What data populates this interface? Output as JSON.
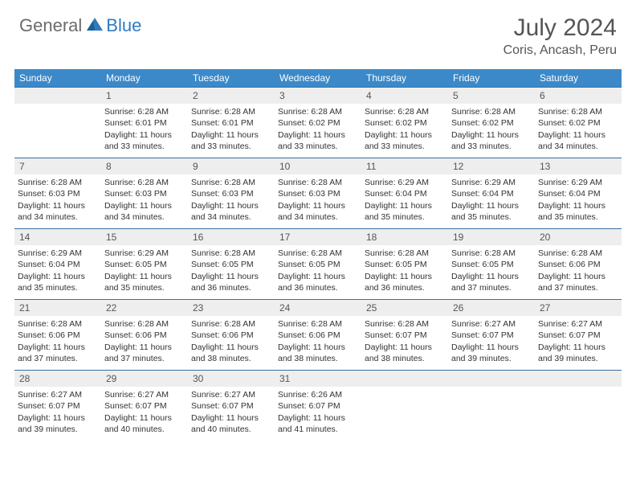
{
  "brand": {
    "general": "General",
    "blue": "Blue"
  },
  "title": "July 2024",
  "location": "Coris, Ancash, Peru",
  "colors": {
    "header_bg": "#3b89c9",
    "header_text": "#ffffff",
    "stripe_bg": "#eeeeee",
    "border": "#3b6fa0",
    "body_text": "#333333",
    "brand_gray": "#6b6b6b",
    "brand_blue": "#2f7bbf"
  },
  "dow": [
    "Sunday",
    "Monday",
    "Tuesday",
    "Wednesday",
    "Thursday",
    "Friday",
    "Saturday"
  ],
  "weeks": [
    [
      {
        "n": "",
        "sr": "",
        "ss": "",
        "dl": ""
      },
      {
        "n": "1",
        "sr": "Sunrise: 6:28 AM",
        "ss": "Sunset: 6:01 PM",
        "dl": "Daylight: 11 hours and 33 minutes."
      },
      {
        "n": "2",
        "sr": "Sunrise: 6:28 AM",
        "ss": "Sunset: 6:01 PM",
        "dl": "Daylight: 11 hours and 33 minutes."
      },
      {
        "n": "3",
        "sr": "Sunrise: 6:28 AM",
        "ss": "Sunset: 6:02 PM",
        "dl": "Daylight: 11 hours and 33 minutes."
      },
      {
        "n": "4",
        "sr": "Sunrise: 6:28 AM",
        "ss": "Sunset: 6:02 PM",
        "dl": "Daylight: 11 hours and 33 minutes."
      },
      {
        "n": "5",
        "sr": "Sunrise: 6:28 AM",
        "ss": "Sunset: 6:02 PM",
        "dl": "Daylight: 11 hours and 33 minutes."
      },
      {
        "n": "6",
        "sr": "Sunrise: 6:28 AM",
        "ss": "Sunset: 6:02 PM",
        "dl": "Daylight: 11 hours and 34 minutes."
      }
    ],
    [
      {
        "n": "7",
        "sr": "Sunrise: 6:28 AM",
        "ss": "Sunset: 6:03 PM",
        "dl": "Daylight: 11 hours and 34 minutes."
      },
      {
        "n": "8",
        "sr": "Sunrise: 6:28 AM",
        "ss": "Sunset: 6:03 PM",
        "dl": "Daylight: 11 hours and 34 minutes."
      },
      {
        "n": "9",
        "sr": "Sunrise: 6:28 AM",
        "ss": "Sunset: 6:03 PM",
        "dl": "Daylight: 11 hours and 34 minutes."
      },
      {
        "n": "10",
        "sr": "Sunrise: 6:28 AM",
        "ss": "Sunset: 6:03 PM",
        "dl": "Daylight: 11 hours and 34 minutes."
      },
      {
        "n": "11",
        "sr": "Sunrise: 6:29 AM",
        "ss": "Sunset: 6:04 PM",
        "dl": "Daylight: 11 hours and 35 minutes."
      },
      {
        "n": "12",
        "sr": "Sunrise: 6:29 AM",
        "ss": "Sunset: 6:04 PM",
        "dl": "Daylight: 11 hours and 35 minutes."
      },
      {
        "n": "13",
        "sr": "Sunrise: 6:29 AM",
        "ss": "Sunset: 6:04 PM",
        "dl": "Daylight: 11 hours and 35 minutes."
      }
    ],
    [
      {
        "n": "14",
        "sr": "Sunrise: 6:29 AM",
        "ss": "Sunset: 6:04 PM",
        "dl": "Daylight: 11 hours and 35 minutes."
      },
      {
        "n": "15",
        "sr": "Sunrise: 6:29 AM",
        "ss": "Sunset: 6:05 PM",
        "dl": "Daylight: 11 hours and 35 minutes."
      },
      {
        "n": "16",
        "sr": "Sunrise: 6:28 AM",
        "ss": "Sunset: 6:05 PM",
        "dl": "Daylight: 11 hours and 36 minutes."
      },
      {
        "n": "17",
        "sr": "Sunrise: 6:28 AM",
        "ss": "Sunset: 6:05 PM",
        "dl": "Daylight: 11 hours and 36 minutes."
      },
      {
        "n": "18",
        "sr": "Sunrise: 6:28 AM",
        "ss": "Sunset: 6:05 PM",
        "dl": "Daylight: 11 hours and 36 minutes."
      },
      {
        "n": "19",
        "sr": "Sunrise: 6:28 AM",
        "ss": "Sunset: 6:05 PM",
        "dl": "Daylight: 11 hours and 37 minutes."
      },
      {
        "n": "20",
        "sr": "Sunrise: 6:28 AM",
        "ss": "Sunset: 6:06 PM",
        "dl": "Daylight: 11 hours and 37 minutes."
      }
    ],
    [
      {
        "n": "21",
        "sr": "Sunrise: 6:28 AM",
        "ss": "Sunset: 6:06 PM",
        "dl": "Daylight: 11 hours and 37 minutes."
      },
      {
        "n": "22",
        "sr": "Sunrise: 6:28 AM",
        "ss": "Sunset: 6:06 PM",
        "dl": "Daylight: 11 hours and 37 minutes."
      },
      {
        "n": "23",
        "sr": "Sunrise: 6:28 AM",
        "ss": "Sunset: 6:06 PM",
        "dl": "Daylight: 11 hours and 38 minutes."
      },
      {
        "n": "24",
        "sr": "Sunrise: 6:28 AM",
        "ss": "Sunset: 6:06 PM",
        "dl": "Daylight: 11 hours and 38 minutes."
      },
      {
        "n": "25",
        "sr": "Sunrise: 6:28 AM",
        "ss": "Sunset: 6:07 PM",
        "dl": "Daylight: 11 hours and 38 minutes."
      },
      {
        "n": "26",
        "sr": "Sunrise: 6:27 AM",
        "ss": "Sunset: 6:07 PM",
        "dl": "Daylight: 11 hours and 39 minutes."
      },
      {
        "n": "27",
        "sr": "Sunrise: 6:27 AM",
        "ss": "Sunset: 6:07 PM",
        "dl": "Daylight: 11 hours and 39 minutes."
      }
    ],
    [
      {
        "n": "28",
        "sr": "Sunrise: 6:27 AM",
        "ss": "Sunset: 6:07 PM",
        "dl": "Daylight: 11 hours and 39 minutes."
      },
      {
        "n": "29",
        "sr": "Sunrise: 6:27 AM",
        "ss": "Sunset: 6:07 PM",
        "dl": "Daylight: 11 hours and 40 minutes."
      },
      {
        "n": "30",
        "sr": "Sunrise: 6:27 AM",
        "ss": "Sunset: 6:07 PM",
        "dl": "Daylight: 11 hours and 40 minutes."
      },
      {
        "n": "31",
        "sr": "Sunrise: 6:26 AM",
        "ss": "Sunset: 6:07 PM",
        "dl": "Daylight: 11 hours and 41 minutes."
      },
      {
        "n": "",
        "sr": "",
        "ss": "",
        "dl": ""
      },
      {
        "n": "",
        "sr": "",
        "ss": "",
        "dl": ""
      },
      {
        "n": "",
        "sr": "",
        "ss": "",
        "dl": ""
      }
    ]
  ]
}
